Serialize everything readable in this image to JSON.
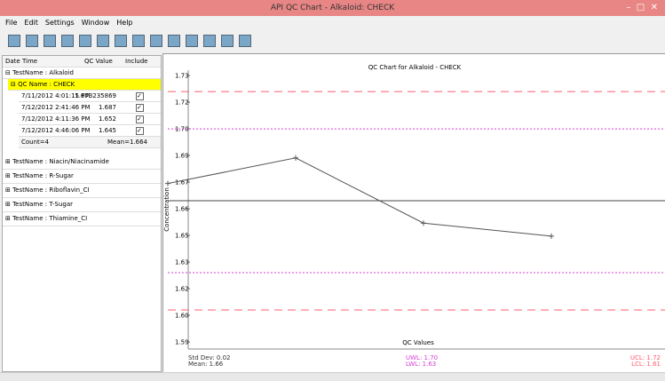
{
  "window": {
    "title": "API QC Chart - Alkaloid: CHECK"
  },
  "menu": [
    "File",
    "Edit",
    "Settings",
    "Window",
    "Help"
  ],
  "tree": {
    "columns": [
      "Date Time",
      "QC Value",
      "Include"
    ],
    "group": "TestName : Alkaloid",
    "qc_name": "QC Name : CHECK",
    "rows": [
      [
        "7/11/2012 4:01:15 PM",
        "1.673235869"
      ],
      [
        "7/12/2012 2:41:46 PM",
        "1.687"
      ],
      [
        "7/12/2012 4:11:36 PM",
        "1.652"
      ],
      [
        "7/12/2012 4:46:06 PM",
        "1.645"
      ]
    ],
    "count": "Count=4",
    "mean": "Mean=1.664",
    "other_groups": [
      "TestName : Niacin/Niacinamide",
      "TestName : R-Sugar",
      "TestName : Riboflavin_CI",
      "TestName : T-Sugar",
      "TestName : Thiamine_CI"
    ]
  },
  "chart_data": {
    "type": "line",
    "title": "QC Chart for Alkaloid - CHECK",
    "y_label": "Concentration",
    "x_label": "QC Values",
    "categories": [
      null,
      null,
      null,
      null
    ],
    "series": [
      {
        "color": "#555555",
        "values": [
          1.673235869,
          1.687,
          1.652,
          1.645
        ]
      }
    ],
    "ylim": [
      1.5844,
      1.7341
    ],
    "yticks": [
      {
        "value": 1.7312,
        "label": "1.73"
      },
      {
        "value": 1.7169,
        "label": "1.72"
      },
      {
        "value": 1.7026,
        "label": "1.70"
      },
      {
        "value": 1.6883,
        "label": "1.69"
      },
      {
        "value": 1.674,
        "label": "1.67"
      },
      {
        "value": 1.6597,
        "label": "1.66"
      },
      {
        "value": 1.6454,
        "label": "1.65"
      },
      {
        "value": 1.6311,
        "label": "1.63"
      },
      {
        "value": 1.6168,
        "label": "1.62"
      },
      {
        "value": 1.6025,
        "label": "1.60"
      },
      {
        "value": 1.5882,
        "label": "1.59"
      }
    ],
    "control_lines": [
      {
        "value": 1.7226,
        "color": "#ff5c6c",
        "dash": "9 6"
      },
      {
        "value": 1.7026,
        "color": "#d63fd6",
        "dash": "2 2"
      },
      {
        "value": 1.664,
        "color": "#444444",
        "dash": "none"
      },
      {
        "value": 1.6254,
        "color": "#d63fd6",
        "dash": "2 2"
      },
      {
        "value": 1.6054,
        "color": "#ff5c6c",
        "dash": "9 6"
      }
    ],
    "stats": {
      "std_dev": "Std Dev: 0.02",
      "mean": "Mean: 1.66",
      "uwl": "UWL: 1.70",
      "lwl": "LWL: 1.63",
      "ucl": "UCL: 1.72",
      "lcl": "LCL: 1.61"
    }
  }
}
